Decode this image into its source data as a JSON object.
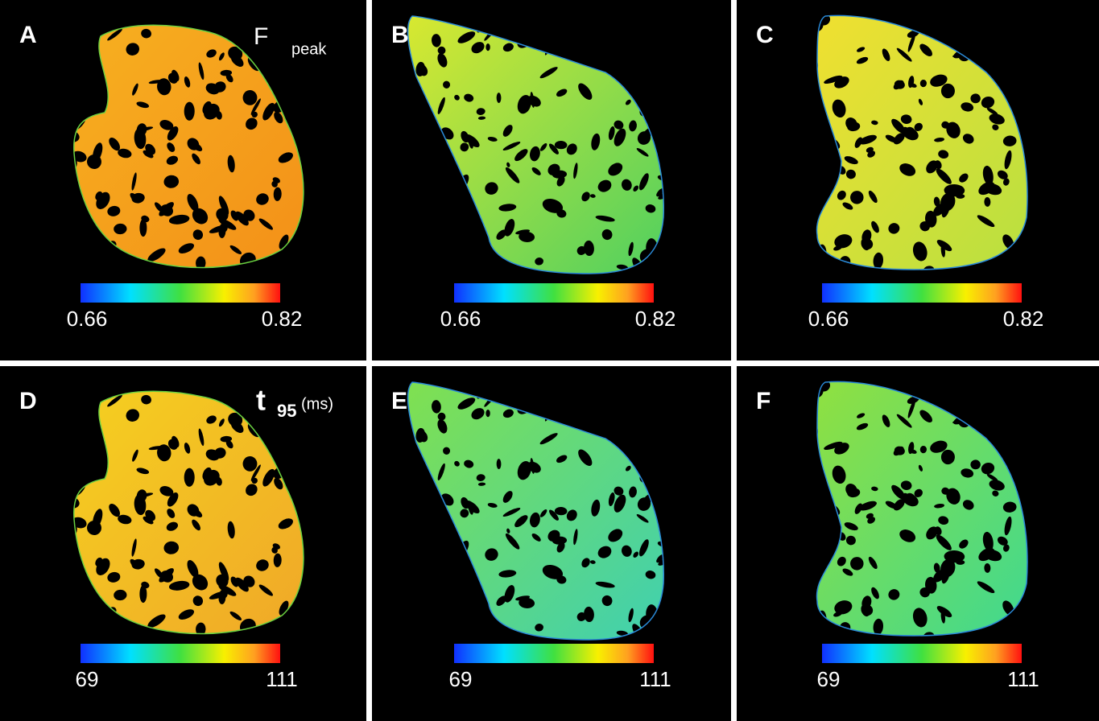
{
  "panels": [
    {
      "label": "A",
      "colorbar": {
        "min": "0.66",
        "max": "0.82"
      }
    },
    {
      "label": "B",
      "colorbar": {
        "min": "0.66",
        "max": "0.82"
      }
    },
    {
      "label": "C",
      "colorbar": {
        "min": "0.66",
        "max": "0.82"
      }
    },
    {
      "label": "D",
      "colorbar": {
        "min": "69",
        "max": "111"
      }
    },
    {
      "label": "E",
      "colorbar": {
        "min": "69",
        "max": "111"
      }
    },
    {
      "label": "F",
      "colorbar": {
        "min": "69",
        "max": "111"
      }
    }
  ],
  "annotations": {
    "top": {
      "main": "F",
      "sub": "peak"
    },
    "bottom": {
      "main": "t",
      "sub": "95",
      "unit": "(ms)"
    }
  }
}
